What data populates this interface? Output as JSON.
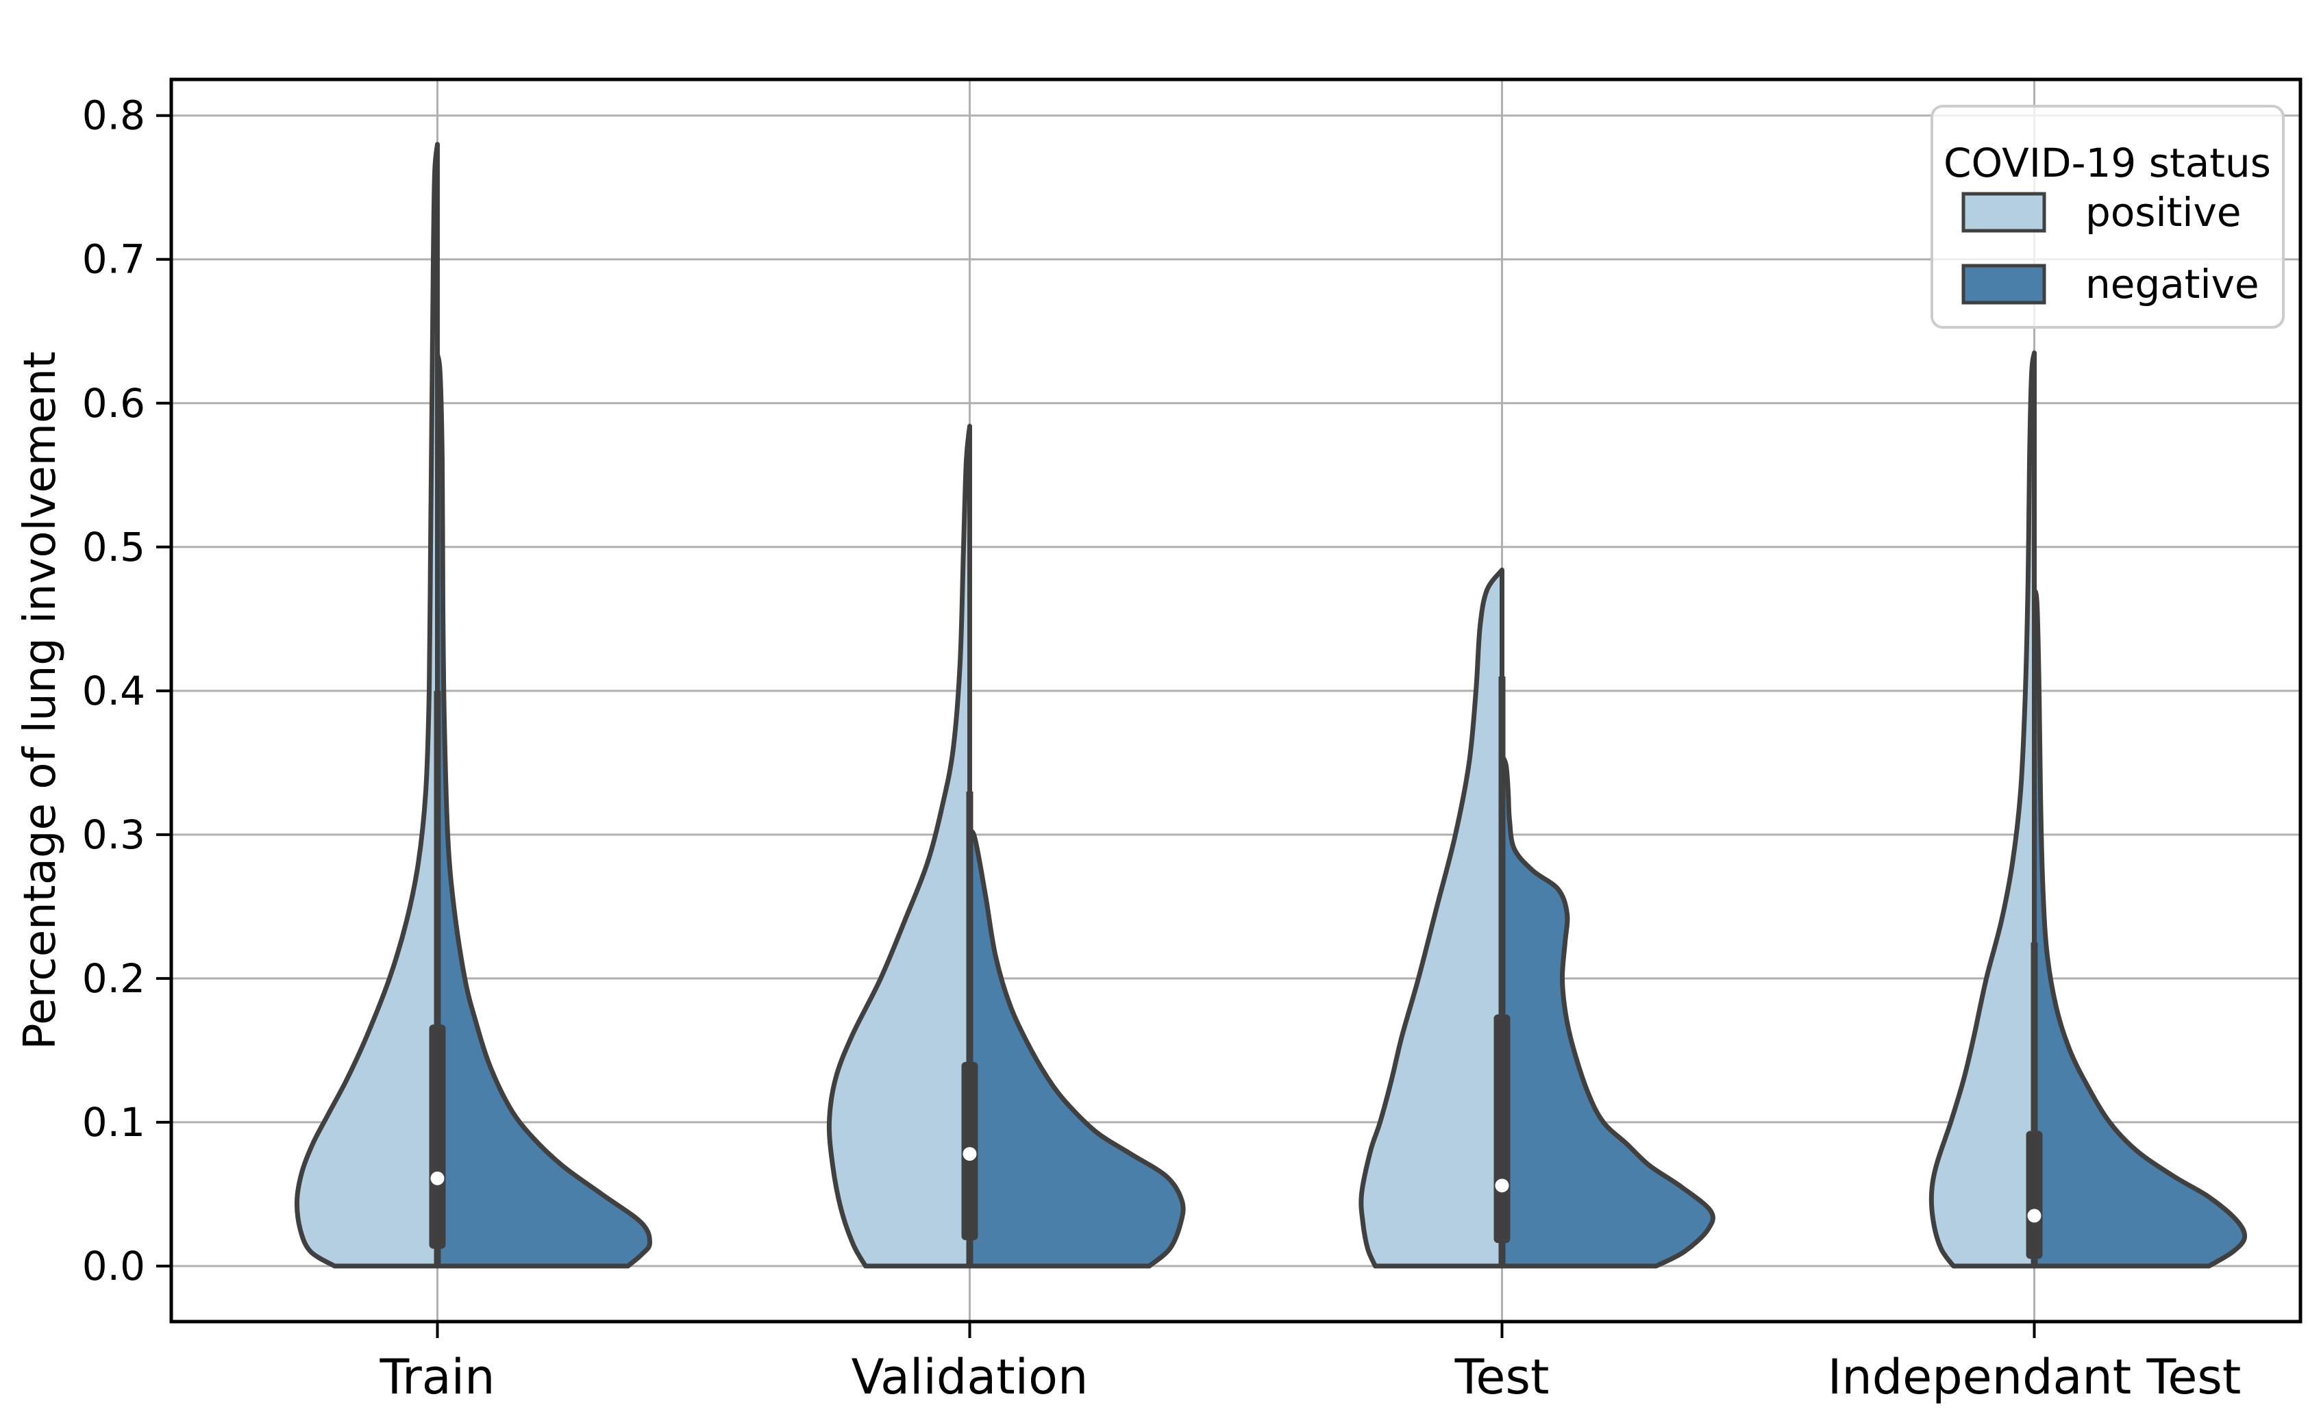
{
  "chart_data": {
    "type": "violin",
    "title": "",
    "ylabel": "Percentage of lung involvement",
    "xlabel": "",
    "ylim": [
      -0.0386,
      0.8251
    ],
    "yticks": [
      "0.0",
      "0.1",
      "0.2",
      "0.3",
      "0.4",
      "0.5",
      "0.6",
      "0.7",
      "0.8"
    ],
    "grid": "on",
    "categories": [
      "Train",
      "Validation",
      "Test",
      "Independant Test"
    ],
    "legend": {
      "title": "COVID-19 status",
      "position": "upper right",
      "entries": [
        {
          "label": "positive",
          "color": "#b4cfe1"
        },
        {
          "label": "negative",
          "color": "#4a7fa9"
        }
      ]
    },
    "colors": {
      "positive_fill": "#b4cfe1",
      "negative_fill": "#4a7fa9",
      "outline": "#404040",
      "gridline": "#b0b0b0",
      "spine": "#000000",
      "median_dot": "#ffffff"
    },
    "violins": [
      {
        "category": "Train",
        "positive_max": 0.78,
        "negative_max": 0.634,
        "box": {
          "q1": 0.012,
          "median": 0.061,
          "q3": 0.168,
          "whisker_high": 0.4,
          "whisker_low": 0.0
        },
        "positive_profile": [
          [
            0,
            150
          ],
          [
            0.01,
            185
          ],
          [
            0.025,
            200
          ],
          [
            0.045,
            205
          ],
          [
            0.065,
            198
          ],
          [
            0.085,
            182
          ],
          [
            0.105,
            160
          ],
          [
            0.13,
            132
          ],
          [
            0.16,
            103
          ],
          [
            0.2,
            70
          ],
          [
            0.24,
            45
          ],
          [
            0.28,
            28
          ],
          [
            0.33,
            17
          ],
          [
            0.4,
            12
          ],
          [
            0.5,
            10
          ],
          [
            0.6,
            8
          ],
          [
            0.7,
            6
          ],
          [
            0.76,
            4
          ],
          [
            0.78,
            0
          ]
        ],
        "negative_profile": [
          [
            0,
            278
          ],
          [
            0.008,
            298
          ],
          [
            0.016,
            310
          ],
          [
            0.03,
            298
          ],
          [
            0.05,
            240
          ],
          [
            0.07,
            182
          ],
          [
            0.09,
            138
          ],
          [
            0.11,
            106
          ],
          [
            0.14,
            76
          ],
          [
            0.17,
            56
          ],
          [
            0.2,
            40
          ],
          [
            0.25,
            24
          ],
          [
            0.3,
            15
          ],
          [
            0.38,
            10
          ],
          [
            0.46,
            8
          ],
          [
            0.56,
            7
          ],
          [
            0.62,
            4
          ],
          [
            0.634,
            0
          ]
        ]
      },
      {
        "category": "Validation",
        "positive_max": 0.584,
        "negative_max": 0.303,
        "box": {
          "q1": 0.018,
          "median": 0.078,
          "q3": 0.142,
          "whisker_high": 0.33,
          "whisker_low": 0.0
        },
        "positive_profile": [
          [
            0,
            152
          ],
          [
            0.015,
            170
          ],
          [
            0.04,
            188
          ],
          [
            0.07,
            200
          ],
          [
            0.1,
            205
          ],
          [
            0.13,
            196
          ],
          [
            0.16,
            172
          ],
          [
            0.2,
            130
          ],
          [
            0.24,
            95
          ],
          [
            0.28,
            62
          ],
          [
            0.32,
            40
          ],
          [
            0.36,
            24
          ],
          [
            0.42,
            14
          ],
          [
            0.5,
            9
          ],
          [
            0.56,
            5
          ],
          [
            0.584,
            0
          ]
        ],
        "negative_profile": [
          [
            0,
            262
          ],
          [
            0.012,
            292
          ],
          [
            0.03,
            308
          ],
          [
            0.045,
            310
          ],
          [
            0.062,
            288
          ],
          [
            0.078,
            235
          ],
          [
            0.092,
            188
          ],
          [
            0.108,
            152
          ],
          [
            0.125,
            122
          ],
          [
            0.15,
            90
          ],
          [
            0.18,
            60
          ],
          [
            0.215,
            38
          ],
          [
            0.255,
            24
          ],
          [
            0.285,
            13
          ],
          [
            0.3,
            6
          ],
          [
            0.303,
            0
          ]
        ]
      },
      {
        "category": "Test",
        "positive_max": 0.484,
        "negative_max": 0.355,
        "box": {
          "q1": 0.016,
          "median": 0.056,
          "q3": 0.175,
          "whisker_high": 0.41,
          "whisker_low": 0.0
        },
        "positive_profile": [
          [
            0,
            185
          ],
          [
            0.012,
            196
          ],
          [
            0.03,
            203
          ],
          [
            0.05,
            205
          ],
          [
            0.08,
            192
          ],
          [
            0.1,
            178
          ],
          [
            0.13,
            161
          ],
          [
            0.16,
            146
          ],
          [
            0.2,
            122
          ],
          [
            0.25,
            95
          ],
          [
            0.3,
            68
          ],
          [
            0.35,
            48
          ],
          [
            0.4,
            38
          ],
          [
            0.445,
            32
          ],
          [
            0.47,
            22
          ],
          [
            0.484,
            0
          ]
        ],
        "negative_profile": [
          [
            0,
            225
          ],
          [
            0.01,
            266
          ],
          [
            0.025,
            300
          ],
          [
            0.038,
            305
          ],
          [
            0.055,
            262
          ],
          [
            0.07,
            215
          ],
          [
            0.085,
            182
          ],
          [
            0.1,
            148
          ],
          [
            0.12,
            126
          ],
          [
            0.15,
            105
          ],
          [
            0.175,
            93
          ],
          [
            0.2,
            88
          ],
          [
            0.225,
            92
          ],
          [
            0.245,
            95
          ],
          [
            0.262,
            82
          ],
          [
            0.275,
            45
          ],
          [
            0.29,
            18
          ],
          [
            0.31,
            11
          ],
          [
            0.33,
            9
          ],
          [
            0.348,
            6
          ],
          [
            0.355,
            0
          ]
        ]
      },
      {
        "category": "Independant Test",
        "positive_max": 0.635,
        "negative_max": 0.47,
        "box": {
          "q1": 0.005,
          "median": 0.035,
          "q3": 0.094,
          "whisker_high": 0.225,
          "whisker_low": 0.0
        },
        "positive_profile": [
          [
            0,
            118
          ],
          [
            0.012,
            136
          ],
          [
            0.03,
            147
          ],
          [
            0.05,
            150
          ],
          [
            0.07,
            143
          ],
          [
            0.1,
            122
          ],
          [
            0.13,
            103
          ],
          [
            0.16,
            88
          ],
          [
            0.2,
            70
          ],
          [
            0.24,
            48
          ],
          [
            0.28,
            32
          ],
          [
            0.33,
            20
          ],
          [
            0.4,
            13
          ],
          [
            0.48,
            9
          ],
          [
            0.56,
            7
          ],
          [
            0.62,
            4
          ],
          [
            0.635,
            0
          ]
        ],
        "negative_profile": [
          [
            0,
            255
          ],
          [
            0.01,
            290
          ],
          [
            0.02,
            307
          ],
          [
            0.032,
            295
          ],
          [
            0.048,
            255
          ],
          [
            0.062,
            205
          ],
          [
            0.08,
            150
          ],
          [
            0.1,
            110
          ],
          [
            0.125,
            78
          ],
          [
            0.15,
            52
          ],
          [
            0.18,
            32
          ],
          [
            0.22,
            18
          ],
          [
            0.27,
            12
          ],
          [
            0.33,
            9
          ],
          [
            0.4,
            7
          ],
          [
            0.46,
            4
          ],
          [
            0.47,
            0
          ]
        ]
      }
    ]
  }
}
